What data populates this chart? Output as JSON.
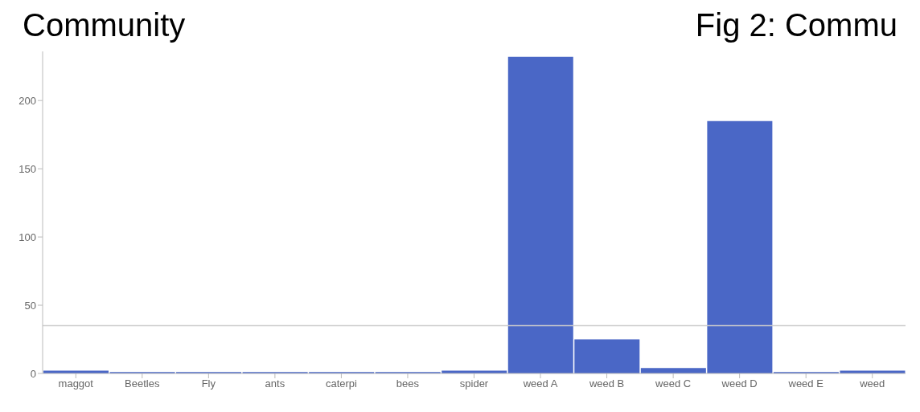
{
  "chart_data": {
    "type": "bar",
    "title": "Fig 2: Commu",
    "annotations": [
      "Community"
    ],
    "categories": [
      "maggot",
      "Beetles",
      "Fly",
      "ants",
      "caterpi",
      "bees",
      "spider",
      "weed A",
      "weed B",
      "weed C",
      "weed D",
      "weed E",
      "weed"
    ],
    "values": [
      2,
      1,
      1,
      1,
      1,
      1,
      2,
      232,
      25,
      4,
      185,
      1,
      2
    ],
    "color": "#4a67c6",
    "ylim": [
      0,
      236
    ],
    "yticks": [
      0,
      50,
      100,
      150,
      200
    ],
    "grid": false,
    "ref_lines": [
      {
        "axis": "y",
        "value": 35,
        "color": "#cccccc"
      }
    ]
  }
}
